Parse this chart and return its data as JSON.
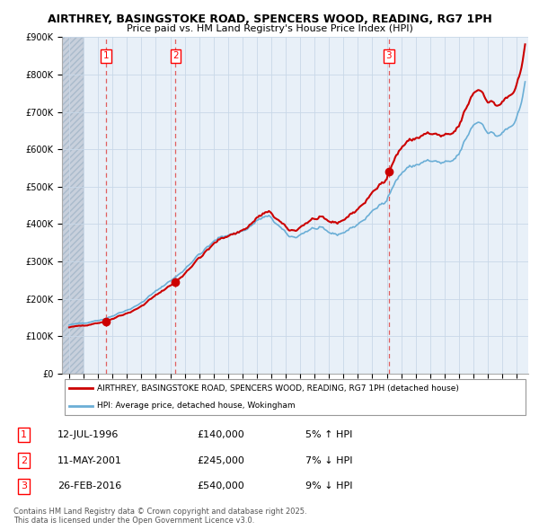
{
  "title1": "AIRTHREY, BASINGSTOKE ROAD, SPENCERS WOOD, READING, RG7 1PH",
  "title2": "Price paid vs. HM Land Registry's House Price Index (HPI)",
  "legend_line1": "AIRTHREY, BASINGSTOKE ROAD, SPENCERS WOOD, READING, RG7 1PH (detached house)",
  "legend_line2": "HPI: Average price, detached house, Wokingham",
  "transactions": [
    {
      "num": 1,
      "date": "12-JUL-1996",
      "price": 140000,
      "pct": "5%",
      "dir": "↑"
    },
    {
      "num": 2,
      "date": "11-MAY-2001",
      "price": 245000,
      "pct": "7%",
      "dir": "↓"
    },
    {
      "num": 3,
      "date": "26-FEB-2016",
      "price": 540000,
      "pct": "9%",
      "dir": "↓"
    }
  ],
  "transaction_years": [
    1996.54,
    2001.37,
    2016.15
  ],
  "transaction_prices": [
    140000,
    245000,
    540000
  ],
  "ylim": [
    0,
    900000
  ],
  "xlim_left": 1993.5,
  "xlim_right": 2025.8,
  "hatch_end_year": 1995.0,
  "footnote": "Contains HM Land Registry data © Crown copyright and database right 2025.\nThis data is licensed under the Open Government Licence v3.0.",
  "grid_color": "#c8d8e8",
  "bg_color": "#e8f0f8",
  "hpi_color": "#6aaed6",
  "price_color": "#cc0000",
  "dashed_line_color": "#e06060",
  "hatch_color": "#c8d0dc"
}
